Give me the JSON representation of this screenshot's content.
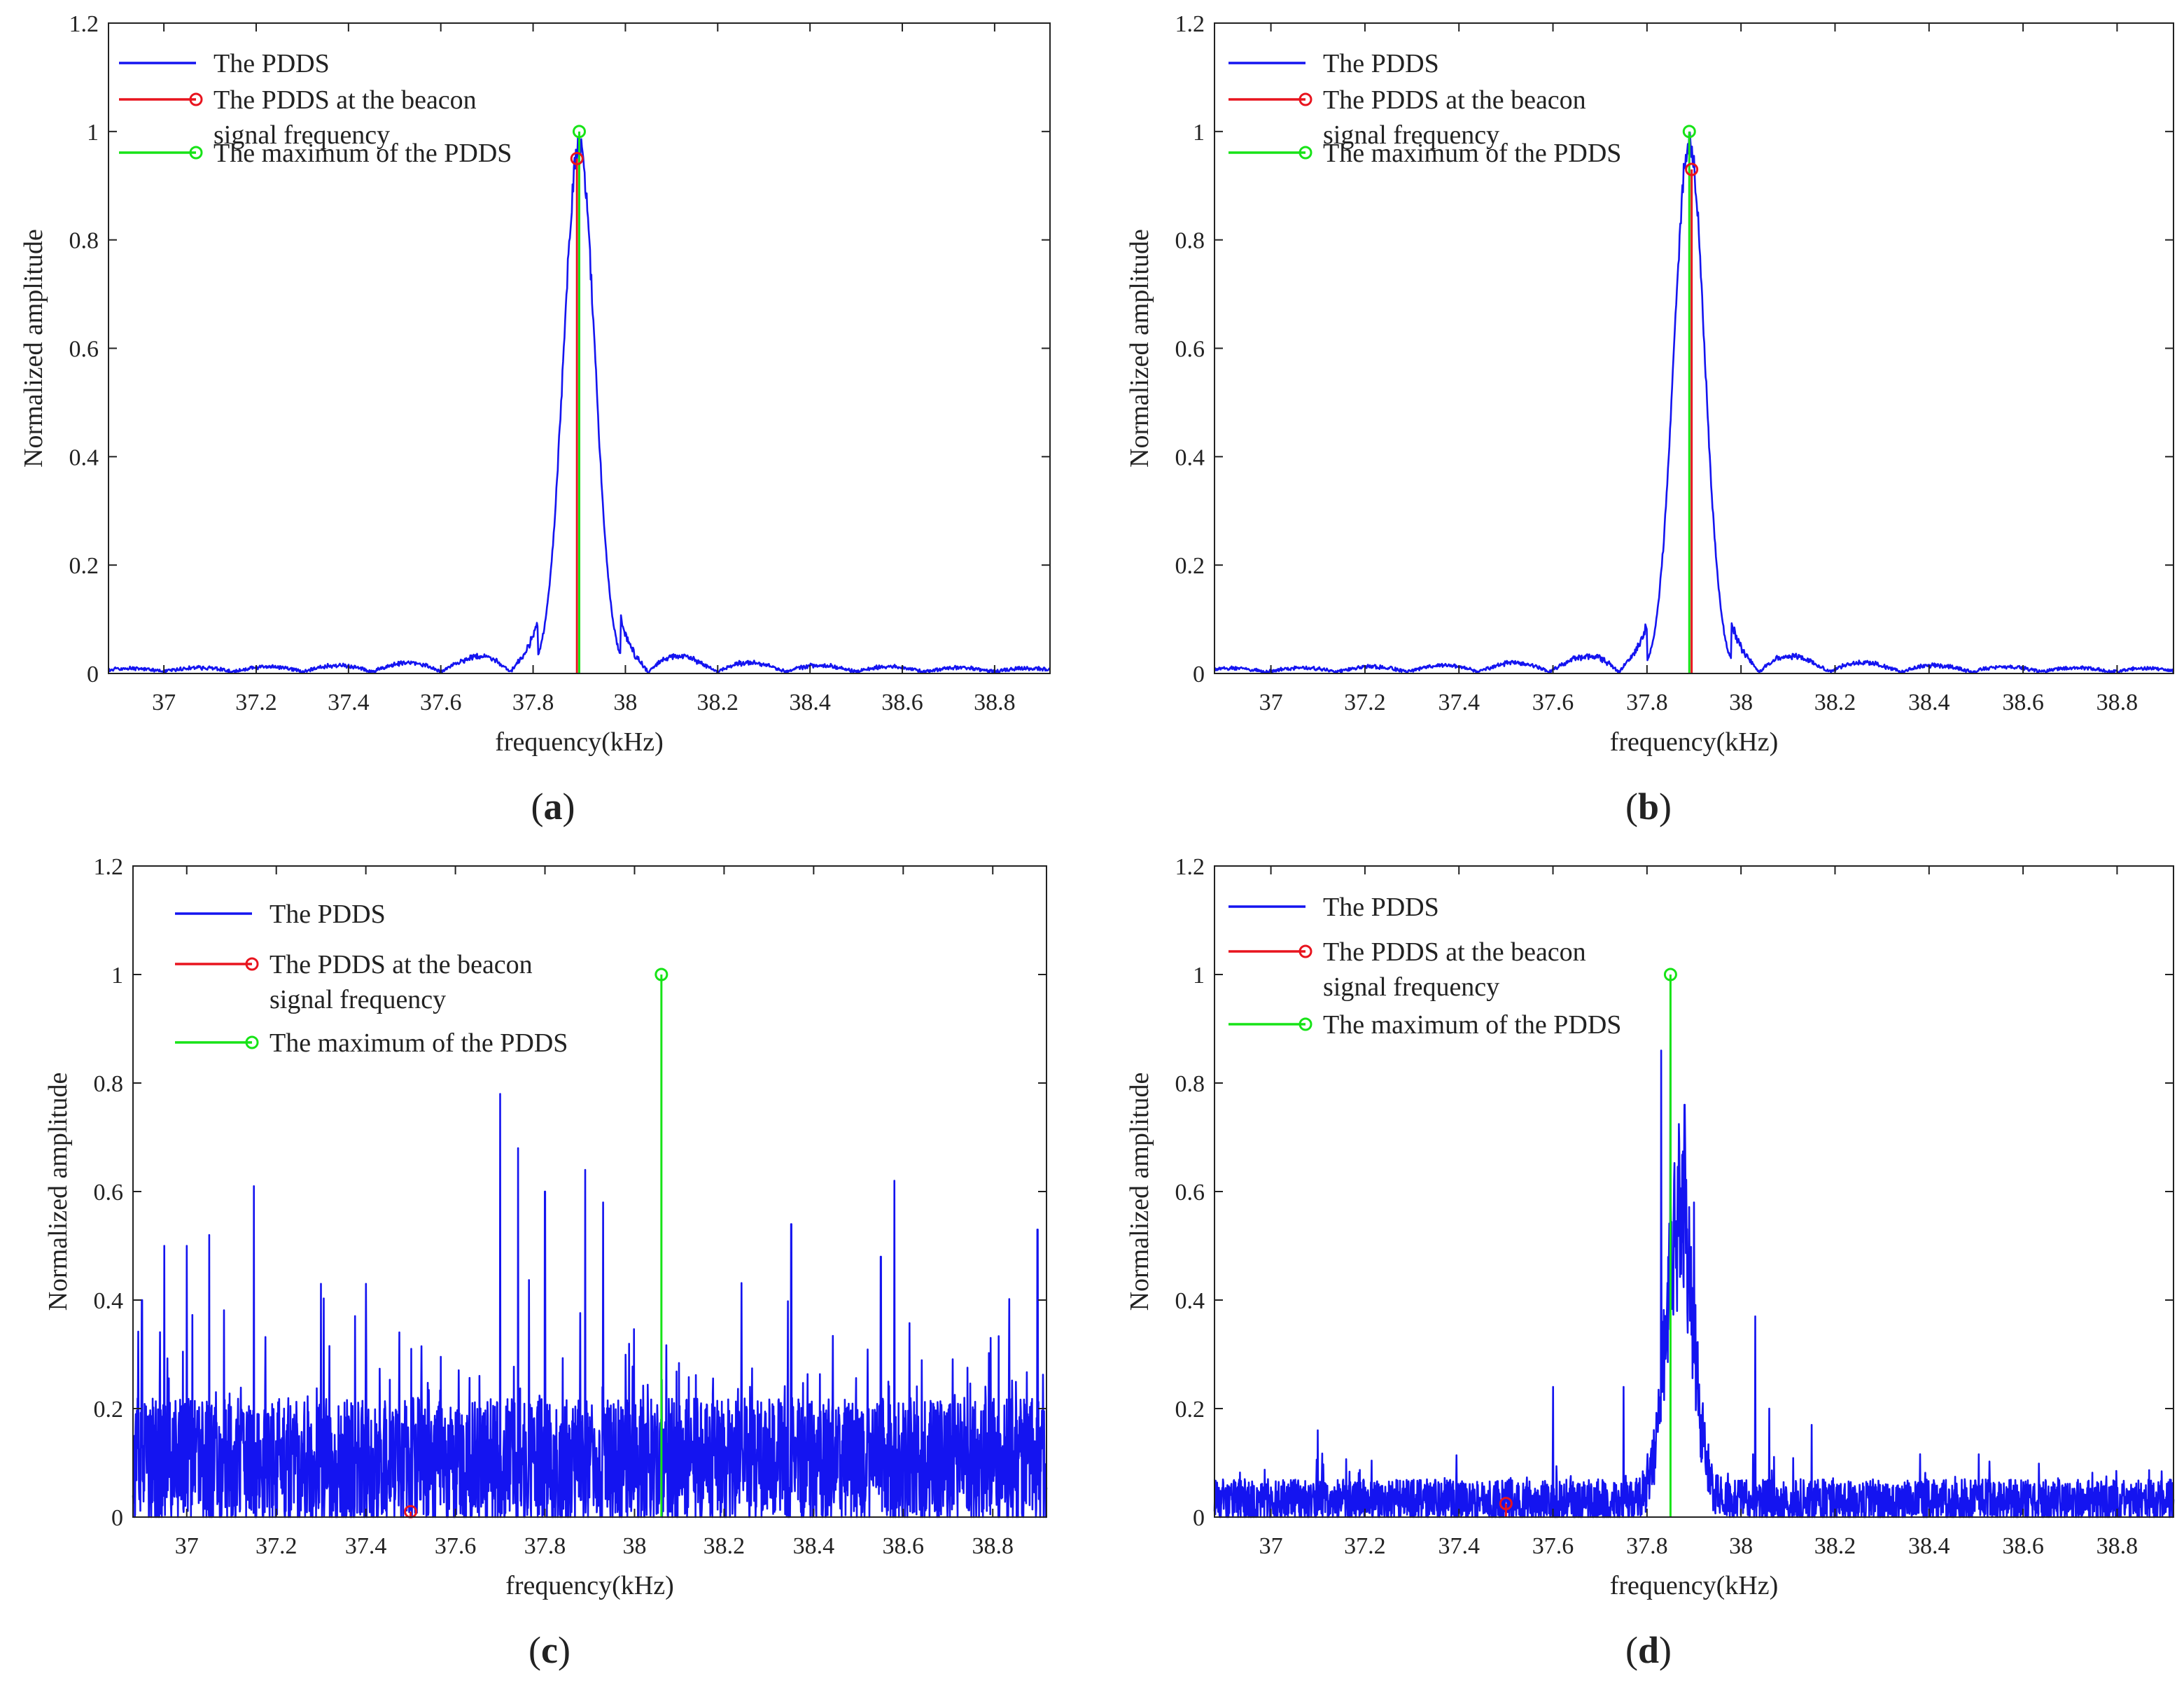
{
  "figure": {
    "captions": [
      "(a)",
      "(b)",
      "(c)",
      "(d)"
    ]
  },
  "colors": {
    "pdds": "#1414f0",
    "beacon": "#e8141e",
    "maximum": "#17e317",
    "axis": "#222222"
  },
  "chart_data": [
    {
      "id": "a",
      "type": "line",
      "caption": "(a)",
      "xlabel": "frequency(kHz)",
      "ylabel": "Normalized amplitude",
      "xlim": [
        36.88,
        38.92
      ],
      "ylim": [
        0,
        1.2
      ],
      "xticks": [
        37,
        37.2,
        37.4,
        37.6,
        37.8,
        38,
        38.2,
        38.4,
        38.6,
        38.8
      ],
      "xtick_labels": [
        "37",
        "37.2",
        "37.4",
        "37.6",
        "37.8",
        "38",
        "38.2",
        "38.4",
        "38.6",
        "38.8"
      ],
      "yticks": [
        0,
        0.2,
        0.4,
        0.6,
        0.8,
        1,
        1.2
      ],
      "ytick_labels": [
        "0",
        "0.2",
        "0.4",
        "0.6",
        "0.8",
        "1",
        "1.2"
      ],
      "legend": [
        "The PDDS",
        "The PDDS at the beacon",
        "signal frequency",
        "The maximum of the PDDS"
      ],
      "legend_position": "top-left",
      "series": [
        {
          "name": "The PDDS",
          "style": "smooth",
          "center": 37.9,
          "peak": 0.97,
          "width": 0.048,
          "lobe_amp": 0.055,
          "floor": 0.006,
          "seed": 11
        },
        {
          "name": "The PDDS at the beacon signal frequency",
          "style": "stem",
          "x": 37.895,
          "y": 0.95
        },
        {
          "name": "The maximum of the PDDS",
          "style": "stem",
          "x": 37.9,
          "y": 1.0
        }
      ]
    },
    {
      "id": "b",
      "type": "line",
      "caption": "(b)",
      "xlabel": "frequency(kHz)",
      "ylabel": "Normalized amplitude",
      "xlim": [
        36.88,
        38.92
      ],
      "ylim": [
        0,
        1.2
      ],
      "xticks": [
        37,
        37.2,
        37.4,
        37.6,
        37.8,
        38,
        38.2,
        38.4,
        38.6,
        38.8
      ],
      "xtick_labels": [
        "37",
        "37.2",
        "37.4",
        "37.6",
        "37.8",
        "38",
        "38.2",
        "38.4",
        "38.6",
        "38.8"
      ],
      "yticks": [
        0,
        0.2,
        0.4,
        0.6,
        0.8,
        1,
        1.2
      ],
      "ytick_labels": [
        "0",
        "0.2",
        "0.4",
        "0.6",
        "0.8",
        "1",
        "1.2"
      ],
      "legend": [
        "The PDDS",
        "The PDDS at the beacon",
        "signal frequency",
        "The maximum of the PDDS"
      ],
      "legend_position": "top-left",
      "series": [
        {
          "name": "The PDDS",
          "style": "smooth",
          "center": 37.89,
          "peak": 0.98,
          "width": 0.046,
          "lobe_amp": 0.055,
          "floor": 0.006,
          "seed": 23
        },
        {
          "name": "The PDDS at the beacon signal frequency",
          "style": "stem",
          "x": 37.895,
          "y": 0.93
        },
        {
          "name": "The maximum of the PDDS",
          "style": "stem",
          "x": 37.89,
          "y": 1.0
        }
      ]
    },
    {
      "id": "c",
      "type": "line",
      "caption": "(c)",
      "xlabel": "frequency(kHz)",
      "ylabel": "Normalized amplitude",
      "xlim": [
        36.88,
        38.92
      ],
      "ylim": [
        0,
        1.2
      ],
      "xticks": [
        37,
        37.2,
        37.4,
        37.6,
        37.8,
        38,
        38.2,
        38.4,
        38.6,
        38.8
      ],
      "xtick_labels": [
        "37",
        "37.2",
        "37.4",
        "37.6",
        "37.8",
        "38",
        "38.2",
        "38.4",
        "38.6",
        "38.8"
      ],
      "yticks": [
        0,
        0.2,
        0.4,
        0.6,
        0.8,
        1,
        1.2
      ],
      "ytick_labels": [
        "0",
        "0.2",
        "0.4",
        "0.6",
        "0.8",
        "1",
        "1.2"
      ],
      "legend": [
        "The PDDS",
        "The PDDS at the beacon",
        "signal frequency",
        "The maximum of the PDDS"
      ],
      "legend_position": "top-left",
      "series": [
        {
          "name": "The PDDS",
          "style": "noise",
          "noise_level": 0.1,
          "noise_spread": 0.12,
          "seed": 37,
          "spikes": [
            [
              36.9,
              0.4
            ],
            [
              36.95,
              0.5
            ],
            [
              37.0,
              0.5
            ],
            [
              37.05,
              0.52
            ],
            [
              37.15,
              0.61
            ],
            [
              37.3,
              0.43
            ],
            [
              37.4,
              0.43
            ],
            [
              37.7,
              0.78
            ],
            [
              37.74,
              0.68
            ],
            [
              37.8,
              0.6
            ],
            [
              37.89,
              0.64
            ],
            [
              37.93,
              0.58
            ],
            [
              38.35,
              0.54
            ],
            [
              38.55,
              0.48
            ],
            [
              38.58,
              0.62
            ],
            [
              38.9,
              0.53
            ]
          ]
        },
        {
          "name": "The PDDS at the beacon signal frequency",
          "style": "stem",
          "x": 37.5,
          "y": 0.01
        },
        {
          "name": "The maximum of the PDDS",
          "style": "stem",
          "x": 38.06,
          "y": 1.0
        }
      ]
    },
    {
      "id": "d",
      "type": "line",
      "caption": "(d)",
      "xlabel": "frequency(kHz)",
      "ylabel": "Normalized amplitude",
      "xlim": [
        36.88,
        38.92
      ],
      "ylim": [
        0,
        1.2
      ],
      "xticks": [
        37,
        37.2,
        37.4,
        37.6,
        37.8,
        38,
        38.2,
        38.4,
        38.6,
        38.8
      ],
      "xtick_labels": [
        "37",
        "37.2",
        "37.4",
        "37.6",
        "37.8",
        "38",
        "38.2",
        "38.4",
        "38.6",
        "38.8"
      ],
      "yticks": [
        0,
        0.2,
        0.4,
        0.6,
        0.8,
        1,
        1.2
      ],
      "ytick_labels": [
        "0",
        "0.2",
        "0.4",
        "0.6",
        "0.8",
        "1",
        "1.2"
      ],
      "legend": [
        "The PDDS",
        "The PDDS at the beacon",
        "signal frequency",
        "The maximum of the PDDS"
      ],
      "legend_position": "top-left",
      "series": [
        {
          "name": "The PDDS",
          "style": "noisy-peak",
          "center": 37.87,
          "peak": 0.7,
          "width": 0.04,
          "noise_level": 0.03,
          "noise_spread": 0.04,
          "seed": 53,
          "spikes": [
            [
              37.1,
              0.16
            ],
            [
              37.6,
              0.24
            ],
            [
              37.75,
              0.24
            ],
            [
              37.83,
              0.86
            ],
            [
              37.85,
              0.91
            ],
            [
              37.88,
              0.76
            ],
            [
              37.9,
              0.58
            ],
            [
              38.03,
              0.37
            ],
            [
              38.06,
              0.2
            ],
            [
              38.15,
              0.17
            ]
          ]
        },
        {
          "name": "The PDDS at the beacon signal frequency",
          "style": "stem",
          "x": 37.5,
          "y": 0.025
        },
        {
          "name": "The maximum of the PDDS",
          "style": "stem",
          "x": 37.85,
          "y": 1.0
        }
      ]
    }
  ]
}
